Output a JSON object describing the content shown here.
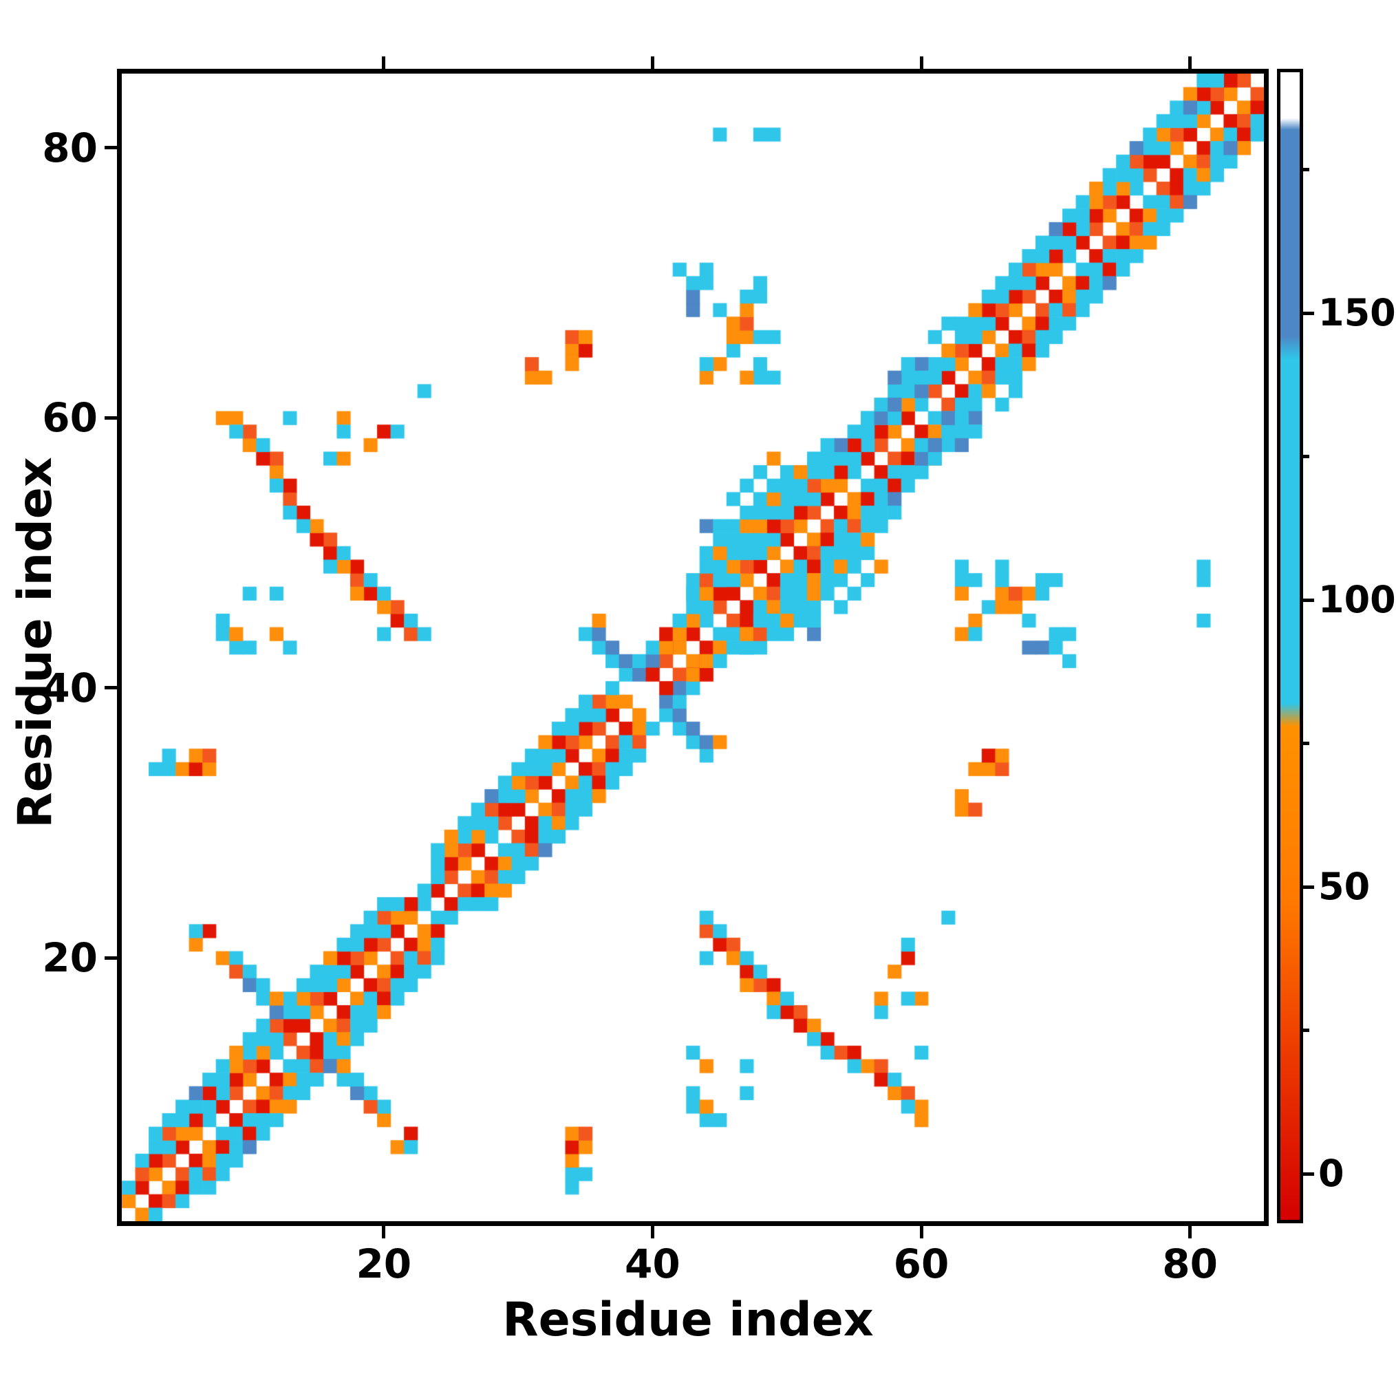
{
  "figure": {
    "xlabel": "Residue index",
    "ylabel": "Residue index"
  },
  "chart_data": {
    "type": "heatmap",
    "title": "",
    "xlabel": "Residue index",
    "ylabel": "Residue index",
    "x_range": [
      1,
      85
    ],
    "y_range": [
      1,
      85
    ],
    "n": 85,
    "symmetric": true,
    "x_ticks": [
      20,
      40,
      60,
      80
    ],
    "y_ticks": [
      20,
      40,
      60,
      80
    ],
    "grid": false,
    "colorbar": {
      "ticks": [
        0,
        50,
        100,
        150
      ],
      "minor_ticks": [
        25,
        75,
        125,
        175
      ],
      "range": [
        -8,
        192
      ],
      "stops": [
        "#ffffff 0%",
        "#ffffff 4%",
        "#4d87c5 5%",
        "#4d87c5 23%",
        "#2fc6ea 25%",
        "#2fc6ea 55%",
        "#ff9100 57%",
        "#ff7a00 72%",
        "#ee3c00 85%",
        "#d40000 100%"
      ]
    },
    "colormap_thresholds": [
      {
        "max": 30,
        "color": "#e11600"
      },
      {
        "max": 45,
        "color": "#f3571d"
      },
      {
        "max": 80,
        "color": "#ff8e0a"
      },
      {
        "max": 145,
        "color": "#2fc6ea"
      },
      {
        "max": 185,
        "color": "#4d87c5"
      },
      {
        "max": 9999,
        "color": "#ffffff"
      }
    ],
    "band_runs": [
      {
        "offset": 1,
        "start": 1,
        "end": 84,
        "skip": [
          39,
          40
        ],
        "pattern": [
          55,
          12,
          55,
          38,
          12,
          55,
          100,
          12,
          38,
          55,
          12,
          100,
          38,
          12,
          55,
          12
        ]
      },
      {
        "offset": 2,
        "start": 1,
        "end": 83,
        "skip": [
          38,
          39,
          40
        ],
        "pattern": [
          100,
          38,
          12,
          100,
          55,
          12,
          100,
          100,
          12,
          38,
          55,
          100,
          12,
          100,
          38,
          100
        ]
      },
      {
        "offset": 3,
        "start": 2,
        "end": 82,
        "skip": [
          22,
          23,
          38,
          39,
          40,
          41
        ],
        "pattern": [
          100,
          100,
          38,
          100,
          100,
          12,
          100,
          55,
          100,
          100,
          38,
          100,
          55,
          100,
          100,
          12
        ]
      },
      {
        "offset": 4,
        "start": 3,
        "end": 81,
        "skip": [
          21,
          22,
          23,
          36,
          37,
          38,
          39,
          40,
          41,
          42,
          61,
          62
        ],
        "pattern": [
          100,
          100,
          100,
          160,
          100,
          100,
          55,
          100,
          100,
          160,
          100,
          100,
          100,
          55,
          100,
          100
        ]
      }
    ],
    "cells": [
      [
        8,
        20,
        55
      ],
      [
        9,
        20,
        100
      ],
      [
        9,
        19,
        38
      ],
      [
        10,
        19,
        100
      ],
      [
        10,
        18,
        160
      ],
      [
        11,
        18,
        100
      ],
      [
        11,
        17,
        100
      ],
      [
        12,
        16,
        160
      ],
      [
        12,
        17,
        55
      ],
      [
        35,
        44,
        100
      ],
      [
        36,
        43,
        100
      ],
      [
        36,
        44,
        160
      ],
      [
        36,
        45,
        55
      ],
      [
        37,
        42,
        100
      ],
      [
        37,
        43,
        160
      ],
      [
        38,
        41,
        100
      ],
      [
        38,
        42,
        160
      ],
      [
        39,
        41,
        160
      ],
      [
        39,
        42,
        100
      ],
      [
        40,
        42,
        160
      ],
      [
        40,
        43,
        100
      ],
      [
        41,
        43,
        55
      ],
      [
        41,
        44,
        12
      ],
      [
        42,
        44,
        55
      ],
      [
        40,
        41,
        12
      ],
      [
        42,
        45,
        100
      ],
      [
        22,
        44,
        38
      ],
      [
        21,
        45,
        12
      ],
      [
        21,
        46,
        38
      ],
      [
        20,
        46,
        55
      ],
      [
        19,
        47,
        12
      ],
      [
        18,
        48,
        38
      ],
      [
        18,
        49,
        12
      ],
      [
        17,
        49,
        55
      ],
      [
        16,
        50,
        12
      ],
      [
        16,
        51,
        38
      ],
      [
        15,
        51,
        12
      ],
      [
        15,
        52,
        55
      ],
      [
        14,
        53,
        12
      ],
      [
        13,
        54,
        38
      ],
      [
        13,
        55,
        12
      ],
      [
        12,
        56,
        55
      ],
      [
        12,
        57,
        38
      ],
      [
        11,
        57,
        12
      ],
      [
        10,
        58,
        55
      ],
      [
        10,
        59,
        38
      ],
      [
        9,
        60,
        55
      ],
      [
        23,
        44,
        100
      ],
      [
        22,
        45,
        100
      ],
      [
        20,
        47,
        100
      ],
      [
        19,
        48,
        100
      ],
      [
        17,
        50,
        100
      ],
      [
        14,
        52,
        100
      ],
      [
        13,
        53,
        100
      ],
      [
        11,
        58,
        100
      ],
      [
        9,
        59,
        100
      ],
      [
        20,
        44,
        100
      ],
      [
        18,
        47,
        55
      ],
      [
        16,
        49,
        100
      ],
      [
        12,
        55,
        100
      ],
      [
        8,
        44,
        100
      ],
      [
        8,
        45,
        100
      ],
      [
        9,
        43,
        100
      ],
      [
        10,
        43,
        100
      ],
      [
        9,
        44,
        55
      ],
      [
        13,
        43,
        100
      ],
      [
        12,
        44,
        55
      ],
      [
        10,
        47,
        100
      ],
      [
        12,
        47,
        100
      ],
      [
        16,
        57,
        100
      ],
      [
        17,
        57,
        55
      ],
      [
        8,
        60,
        55
      ],
      [
        13,
        60,
        100
      ],
      [
        17,
        60,
        55
      ],
      [
        17,
        59,
        100
      ],
      [
        19,
        58,
        55
      ],
      [
        20,
        59,
        12
      ],
      [
        21,
        59,
        100
      ],
      [
        3,
        34,
        100
      ],
      [
        4,
        34,
        100
      ],
      [
        4,
        35,
        100
      ],
      [
        5,
        34,
        55
      ],
      [
        6,
        34,
        12
      ],
      [
        7,
        34,
        55
      ],
      [
        6,
        35,
        55
      ],
      [
        7,
        35,
        38
      ],
      [
        44,
        63,
        55
      ],
      [
        45,
        64,
        55
      ],
      [
        44,
        64,
        100
      ],
      [
        46,
        65,
        100
      ],
      [
        46,
        66,
        55
      ],
      [
        47,
        66,
        55
      ],
      [
        46,
        67,
        55
      ],
      [
        47,
        67,
        38
      ],
      [
        47,
        68,
        55
      ],
      [
        43,
        68,
        160
      ],
      [
        43,
        69,
        160
      ],
      [
        43,
        70,
        100
      ],
      [
        44,
        70,
        100
      ],
      [
        44,
        71,
        100
      ],
      [
        42,
        71,
        100
      ],
      [
        48,
        63,
        100
      ],
      [
        49,
        63,
        100
      ],
      [
        48,
        64,
        100
      ],
      [
        47,
        63,
        55
      ],
      [
        49,
        66,
        100
      ],
      [
        48,
        66,
        100
      ],
      [
        45,
        68,
        100
      ],
      [
        47,
        69,
        100
      ],
      [
        48,
        69,
        100
      ],
      [
        48,
        70,
        100
      ],
      [
        31,
        63,
        55
      ],
      [
        32,
        63,
        55
      ],
      [
        31,
        64,
        38
      ],
      [
        34,
        64,
        55
      ],
      [
        34,
        65,
        55
      ],
      [
        35,
        65,
        12
      ],
      [
        34,
        66,
        38
      ],
      [
        35,
        66,
        55
      ],
      [
        23,
        62,
        100
      ],
      [
        45,
        81,
        100
      ],
      [
        48,
        81,
        100
      ],
      [
        49,
        81,
        100
      ],
      [
        43,
        47,
        100
      ],
      [
        43,
        48,
        100
      ],
      [
        44,
        47,
        55
      ],
      [
        44,
        48,
        38
      ],
      [
        44,
        49,
        100
      ],
      [
        44,
        50,
        100
      ],
      [
        44,
        52,
        160
      ],
      [
        45,
        48,
        100
      ],
      [
        45,
        50,
        55
      ],
      [
        45,
        51,
        100
      ],
      [
        45,
        52,
        100
      ],
      [
        46,
        51,
        100
      ],
      [
        46,
        52,
        100
      ],
      [
        46,
        54,
        100
      ],
      [
        47,
        52,
        55
      ],
      [
        47,
        53,
        100
      ],
      [
        47,
        55,
        100
      ],
      [
        48,
        53,
        100
      ],
      [
        48,
        54,
        100
      ],
      [
        48,
        56,
        100
      ],
      [
        49,
        54,
        55
      ],
      [
        49,
        55,
        100
      ],
      [
        49,
        57,
        55
      ],
      [
        50,
        55,
        100
      ],
      [
        50,
        56,
        100
      ],
      [
        51,
        56,
        55
      ],
      [
        52,
        57,
        100
      ],
      [
        53,
        58,
        100
      ],
      [
        56,
        60,
        100
      ],
      [
        57,
        60,
        160
      ],
      [
        57,
        61,
        100
      ],
      [
        58,
        60,
        100
      ],
      [
        58,
        61,
        160
      ],
      [
        58,
        63,
        160
      ],
      [
        59,
        62,
        100
      ],
      [
        59,
        64,
        100
      ],
      [
        60,
        62,
        160
      ],
      [
        60,
        63,
        100
      ],
      [
        61,
        63,
        100
      ],
      [
        61,
        66,
        100
      ],
      [
        62,
        67,
        100
      ],
      [
        80,
        83,
        160
      ],
      [
        6,
        21,
        55
      ],
      [
        7,
        22,
        12
      ],
      [
        6,
        22,
        100
      ]
    ]
  }
}
